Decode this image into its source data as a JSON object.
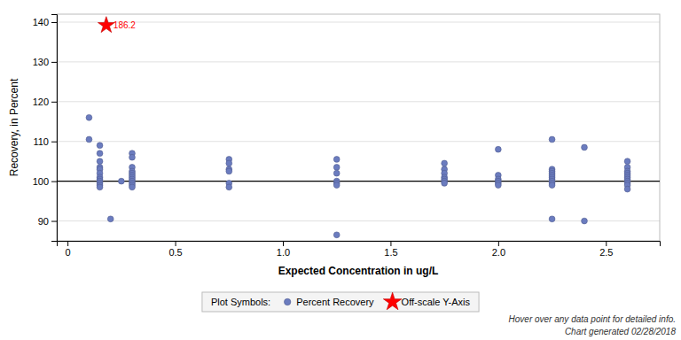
{
  "chart_data": {
    "type": "scatter",
    "xlabel": "Expected Concentration in ug/L",
    "ylabel": "Recovery, in Percent",
    "xlim": [
      -0.05,
      2.75
    ],
    "ylim": [
      85,
      142
    ],
    "xticks": [
      0,
      0.5,
      {
        "value": 1.0,
        "label": "1.0"
      },
      1.5,
      {
        "value": 2.0,
        "label": "2.0"
      },
      2.5
    ],
    "yticks": [
      90,
      100,
      110,
      120,
      130,
      140
    ],
    "grid": true,
    "legend": "bottom",
    "legend_title": "Plot Symbols:",
    "hlines": [
      100
    ],
    "series": [
      {
        "name": "Percent Recovery",
        "color": "#6b7cbf",
        "marker": "circle",
        "x": [
          0.1,
          0.1,
          0.15,
          0.15,
          0.15,
          0.15,
          0.15,
          0.15,
          0.15,
          0.15,
          0.15,
          0.15,
          0.15,
          0.15,
          0.2,
          0.25,
          0.3,
          0.3,
          0.3,
          0.3,
          0.3,
          0.3,
          0.3,
          0.3,
          0.3,
          0.3,
          0.3,
          0.3,
          0.75,
          0.75,
          0.75,
          0.75,
          0.75,
          0.75,
          1.25,
          1.25,
          1.25,
          1.25,
          1.25,
          1.25,
          1.25,
          1.75,
          1.75,
          1.75,
          1.75,
          1.75,
          1.75,
          1.75,
          2.0,
          2.0,
          2.0,
          2.0,
          2.0,
          2.0,
          2.25,
          2.25,
          2.25,
          2.25,
          2.25,
          2.25,
          2.25,
          2.25,
          2.25,
          2.25,
          2.25,
          2.4,
          2.4,
          2.6,
          2.6,
          2.6,
          2.6,
          2.6,
          2.6,
          2.6,
          2.6,
          2.6,
          2.6,
          2.6
        ],
        "values": [
          116.0,
          110.5,
          109.0,
          107.0,
          105.0,
          103.5,
          103.0,
          102.0,
          101.0,
          100.5,
          100.0,
          99.5,
          99.0,
          98.5,
          90.5,
          100.0,
          107.0,
          106.0,
          103.5,
          102.5,
          102.0,
          101.5,
          101.0,
          100.5,
          100.0,
          99.5,
          99.0,
          98.5,
          105.5,
          104.5,
          103.0,
          102.5,
          99.5,
          98.5,
          105.5,
          103.5,
          102.0,
          100.0,
          99.5,
          99.0,
          86.5,
          104.5,
          103.0,
          102.0,
          101.0,
          100.5,
          100.0,
          99.5,
          108.0,
          101.5,
          100.5,
          100.0,
          99.5,
          99.0,
          110.5,
          103.0,
          102.5,
          102.0,
          101.5,
          101.0,
          100.5,
          100.0,
          99.5,
          99.0,
          90.5,
          108.5,
          90.0,
          105.0,
          103.5,
          102.5,
          102.0,
          101.5,
          101.0,
          100.5,
          100.0,
          99.5,
          99.0,
          98.0
        ]
      },
      {
        "name": "Off-scale Y-Axis",
        "color": "red",
        "marker": "star",
        "x": [
          0.18
        ],
        "values": [
          139.2
        ]
      }
    ],
    "annotations": [
      {
        "text": "186.2",
        "x": 0.18,
        "y": 139.2,
        "color": "red"
      }
    ],
    "footnotes": [
      "Hover over any data point for detailed info.",
      "Chart generated 02/28/2018"
    ]
  }
}
